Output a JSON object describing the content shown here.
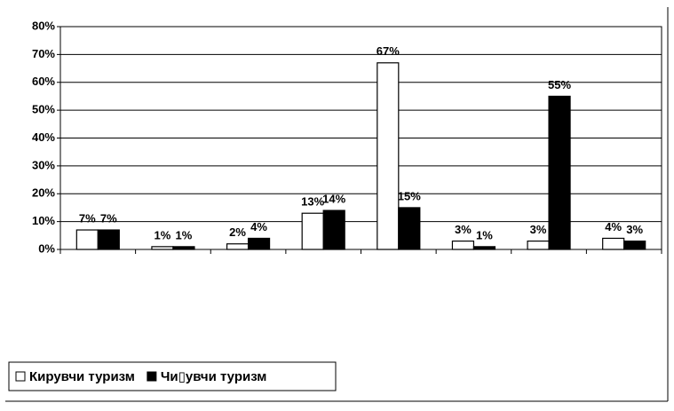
{
  "chart_data": {
    "type": "bar",
    "categories": [
      null,
      null,
      null,
      null,
      null,
      null,
      null,
      null
    ],
    "series": [
      {
        "name": "Кирувчи туризм",
        "color": "#ffffff",
        "values": [
          7,
          1,
          2,
          13,
          67,
          3,
          3,
          4
        ],
        "value_labels": [
          "7%",
          "1%",
          "2%",
          "13%",
          "67%",
          "3%",
          "3%",
          "4%"
        ]
      },
      {
        "name": "Чи▯увчи туризм",
        "color": "#000000",
        "values": [
          7,
          1,
          4,
          14,
          15,
          1,
          55,
          3
        ],
        "value_labels": [
          "7%",
          "1%",
          "4%",
          "14%",
          "15%",
          "1%",
          "55%",
          "3%"
        ]
      }
    ],
    "ylim": [
      0,
      80
    ],
    "yticks": [
      {
        "value": 0,
        "label": "0%"
      },
      {
        "value": 10,
        "label": "10%"
      },
      {
        "value": 20,
        "label": "20%"
      },
      {
        "value": 30,
        "label": "30%"
      },
      {
        "value": 40,
        "label": "40%"
      },
      {
        "value": 50,
        "label": "50%"
      },
      {
        "value": 60,
        "label": "60%"
      },
      {
        "value": 70,
        "label": "70%"
      },
      {
        "value": 80,
        "label": "80%"
      }
    ],
    "grid": true,
    "legend": "bottom-left"
  }
}
